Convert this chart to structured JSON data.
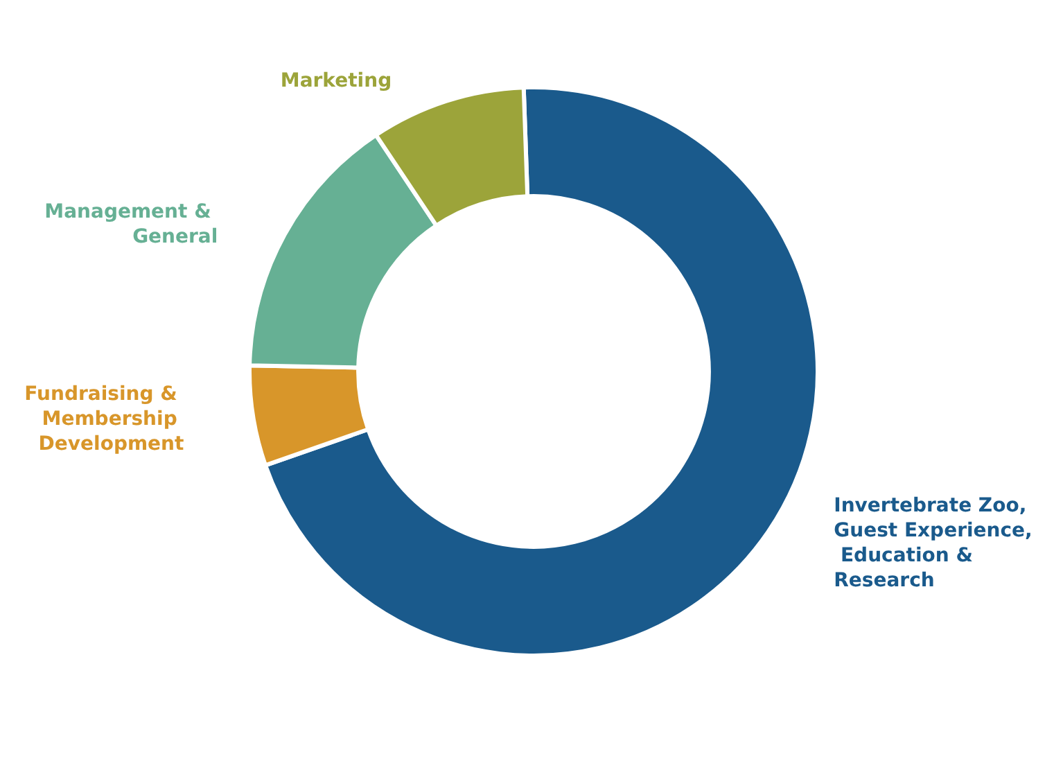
{
  "chart_data": {
    "type": "donut",
    "categories": [
      "Invertebrate Zoo, Guest Experience, Education & Research",
      "Fundraising & Membership Development",
      "Management & General",
      "Marketing"
    ],
    "values": [
      70.2,
      5.7,
      15.3,
      8.8
    ],
    "colors": [
      "#1a5a8c",
      "#d8962a",
      "#66b094",
      "#9ca43a"
    ]
  }
}
